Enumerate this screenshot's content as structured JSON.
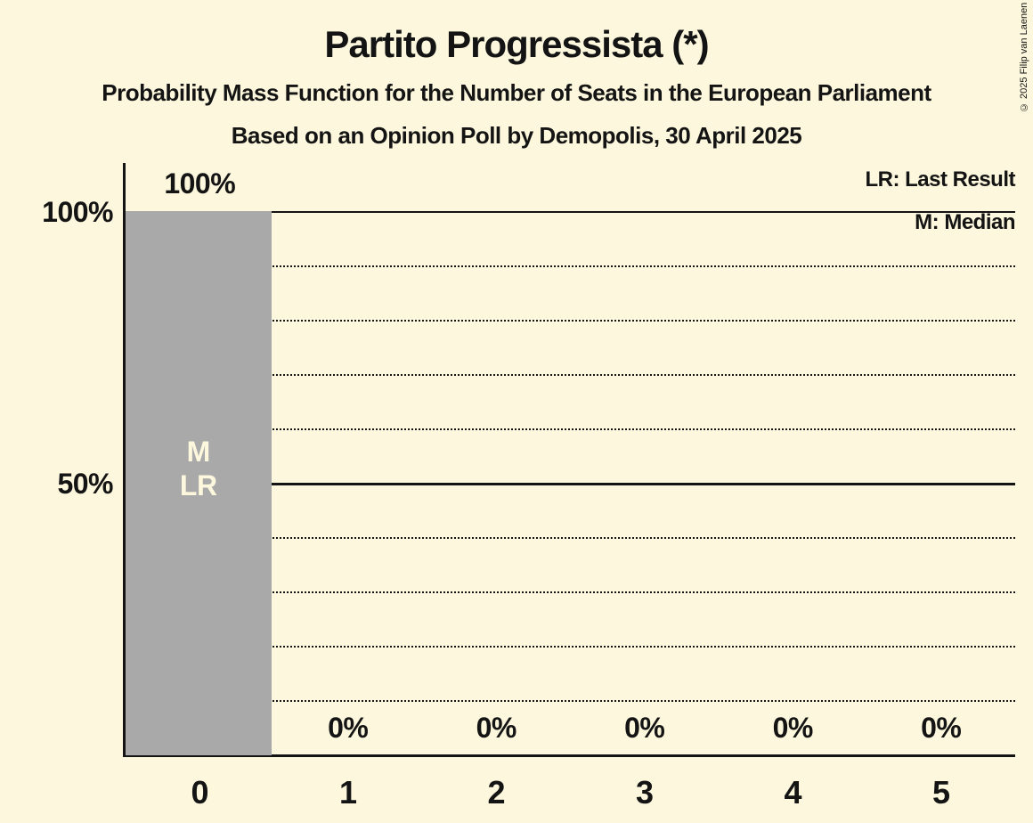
{
  "header": {
    "title": "Partito Progressista (*)",
    "subtitle1": "Probability Mass Function for the Number of Seats in the European Parliament",
    "subtitle2": "Based on an Opinion Poll by Demopolis, 30 April 2025"
  },
  "copyright": "© 2025 Filip van Laenen",
  "legend": {
    "last_result": "LR: Last Result",
    "median": "M: Median"
  },
  "y_axis": {
    "label_100": "100%",
    "label_50": "50%"
  },
  "bar_annotation": {
    "median": "M",
    "last_result": "LR"
  },
  "colors": {
    "background": "#FDF8DD",
    "bar": "#A9A9A9",
    "text": "#141414",
    "bar_annotation_text": "#FDF8DD"
  },
  "chart_data": {
    "type": "bar",
    "title": "Partito Progressista (*)",
    "subtitle": "Probability Mass Function for the Number of Seats in the European Parliament",
    "source_line": "Based on an Opinion Poll by Demopolis, 30 April 2025",
    "categories": [
      "0",
      "1",
      "2",
      "3",
      "4",
      "5"
    ],
    "values": [
      100,
      0,
      0,
      0,
      0,
      0
    ],
    "value_labels": [
      "100%",
      "0%",
      "0%",
      "0%",
      "0%",
      "0%"
    ],
    "ylim": [
      0,
      100
    ],
    "y_tick_labels": [
      "100%",
      "50%"
    ],
    "y_ticks_labeled_pct": [
      100,
      50
    ],
    "gridlines_dotted_pct": [
      90,
      80,
      70,
      60,
      40,
      30,
      20,
      10
    ],
    "gridlines_solid_pct": [
      100,
      50
    ],
    "grid": true,
    "legend_position": "top-right",
    "legend_entries": [
      "LR: Last Result",
      "M: Median"
    ],
    "median_category": "0",
    "last_result_category": "0"
  }
}
